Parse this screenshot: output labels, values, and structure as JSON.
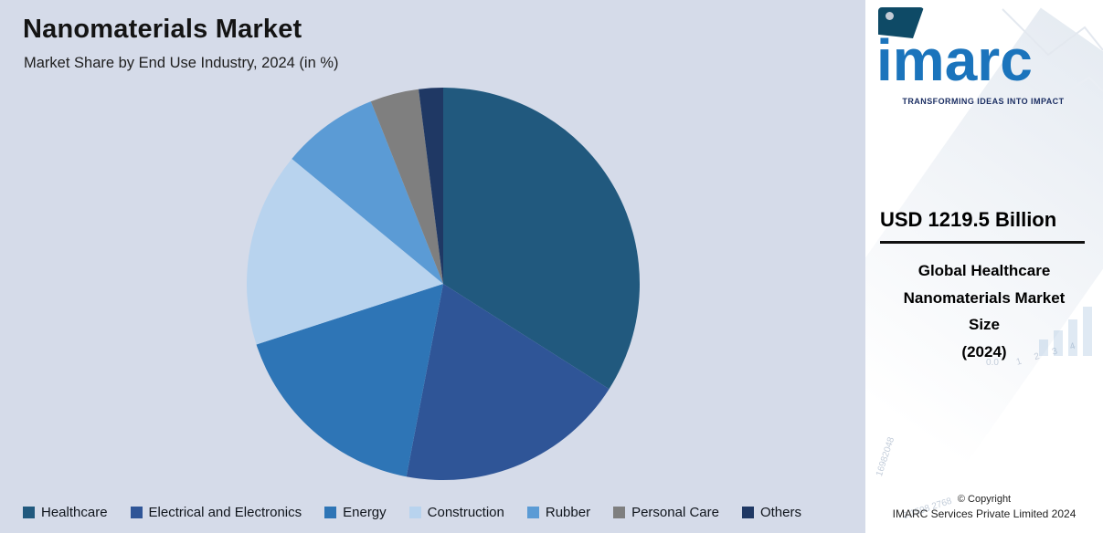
{
  "page": {
    "background": "#d5dbe9",
    "panel_background": "#ffffff"
  },
  "header": {
    "title": "Nanomaterials Market",
    "subtitle": "Market Share by End Use Industry, 2024 (in %)"
  },
  "chart_data": {
    "type": "pie",
    "title": "Nanomaterials Market",
    "subtitle": "Market Share by End Use Industry, 2024 (in %)",
    "units": "%",
    "start_angle_deg": 0,
    "direction": "clockwise",
    "legend_position": "bottom",
    "slices": [
      {
        "label": "Healthcare",
        "value": 34,
        "color": "#21597E"
      },
      {
        "label": "Electrical and Electronics",
        "value": 19,
        "color": "#2F5597"
      },
      {
        "label": "Energy",
        "value": 17,
        "color": "#2E75B6"
      },
      {
        "label": "Construction",
        "value": 16,
        "color": "#B8D3EE"
      },
      {
        "label": "Rubber",
        "value": 8,
        "color": "#5B9BD5"
      },
      {
        "label": "Personal Care",
        "value": 4,
        "color": "#7F7F7F"
      },
      {
        "label": "Others",
        "value": 2,
        "color": "#1F3864"
      }
    ]
  },
  "side_panel": {
    "logo": {
      "i": "i",
      "marc": "marc"
    },
    "tagline": "TRANSFORMING IDEAS INTO IMPACT",
    "metric_value": "USD 1219.5 Billion",
    "metric_label_lines": [
      "Global Healthcare",
      "Nanomaterials Market",
      "Size",
      "(2024)"
    ],
    "copyright_line1": "© Copyright",
    "copyright_line2": "IMARC Services Private Limited 2024",
    "decor_numbers": [
      "16982048",
      "0.1598 2768",
      "0.0",
      "1 2 3 4"
    ],
    "brand_colors": {
      "logo_blue": "#1b74bc",
      "logo_teal": "#0e4a66",
      "tagline_navy": "#1c2f63"
    }
  }
}
